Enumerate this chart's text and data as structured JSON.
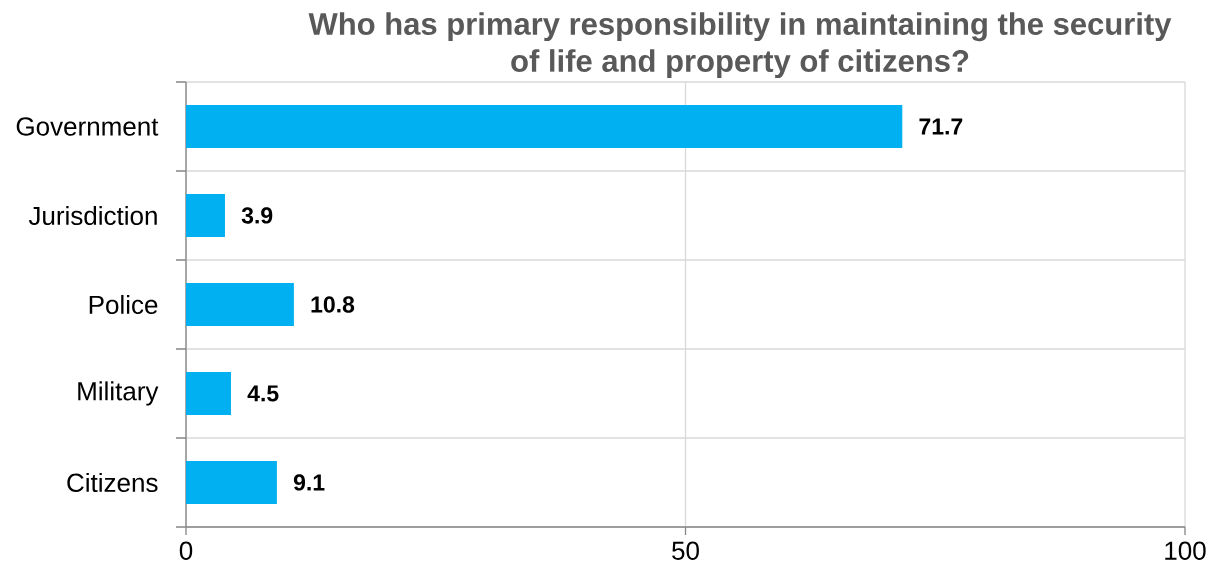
{
  "chart_data": {
    "type": "bar",
    "orientation": "horizontal",
    "title": "Who has primary responsibility in maintaining the security of life and property of citizens?",
    "categories": [
      "Government",
      "Jurisdiction",
      "Police",
      "Military",
      "Citizens"
    ],
    "values": [
      71.7,
      3.9,
      10.8,
      4.5,
      9.1
    ],
    "color": "#00b0f0",
    "xlim": [
      0,
      100
    ],
    "xticks": [
      0,
      50,
      100
    ],
    "grid": true,
    "data_labels": true
  }
}
